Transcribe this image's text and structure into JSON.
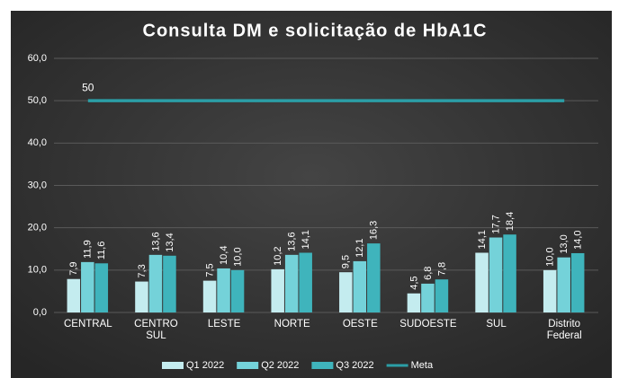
{
  "chart_data": {
    "type": "bar",
    "title": "Consulta DM e solicitação de HbA1C",
    "categories": [
      "CENTRAL",
      "CENTRO SUL",
      "LESTE",
      "NORTE",
      "OESTE",
      "SUDOESTE",
      "SUL",
      "Distrito Federal"
    ],
    "series": [
      {
        "name": "Q1 2022",
        "color": "#c4ecef",
        "values": [
          7.9,
          7.3,
          7.5,
          10.2,
          9.5,
          4.5,
          14.1,
          10.0
        ],
        "value_labels": [
          "7,9",
          "7,3",
          "7,5",
          "10,2",
          "9,5",
          "4,5",
          "14,1",
          "10,0"
        ]
      },
      {
        "name": "Q2 2022",
        "color": "#74d2d9",
        "values": [
          11.9,
          13.6,
          10.4,
          13.6,
          12.1,
          6.8,
          17.7,
          13.0
        ],
        "value_labels": [
          "11,9",
          "13,6",
          "10,4",
          "13,6",
          "12,1",
          "6,8",
          "17,7",
          "13,0"
        ]
      },
      {
        "name": "Q3 2022",
        "color": "#3fb4bc",
        "values": [
          11.6,
          13.4,
          10.0,
          14.1,
          16.3,
          7.8,
          18.4,
          14.0
        ],
        "value_labels": [
          "11,6",
          "13,4",
          "10,0",
          "14,1",
          "16,3",
          "7,8",
          "18,4",
          "14,0"
        ]
      },
      {
        "name": "Meta",
        "color": "#2b9ea6",
        "type": "line",
        "values": [
          50,
          50,
          50,
          50,
          50,
          50,
          50,
          50
        ]
      }
    ],
    "ylim": [
      0,
      60
    ],
    "yticks": [
      {
        "value": 0,
        "label": "0,0"
      },
      {
        "value": 10,
        "label": "10,0"
      },
      {
        "value": 20,
        "label": "20,0"
      },
      {
        "value": 30,
        "label": "30,0"
      },
      {
        "value": 40,
        "label": "40,0"
      },
      {
        "value": 50,
        "label": "50,0"
      },
      {
        "value": 60,
        "label": "60,0"
      }
    ],
    "grid": true,
    "legend": "bottom"
  }
}
